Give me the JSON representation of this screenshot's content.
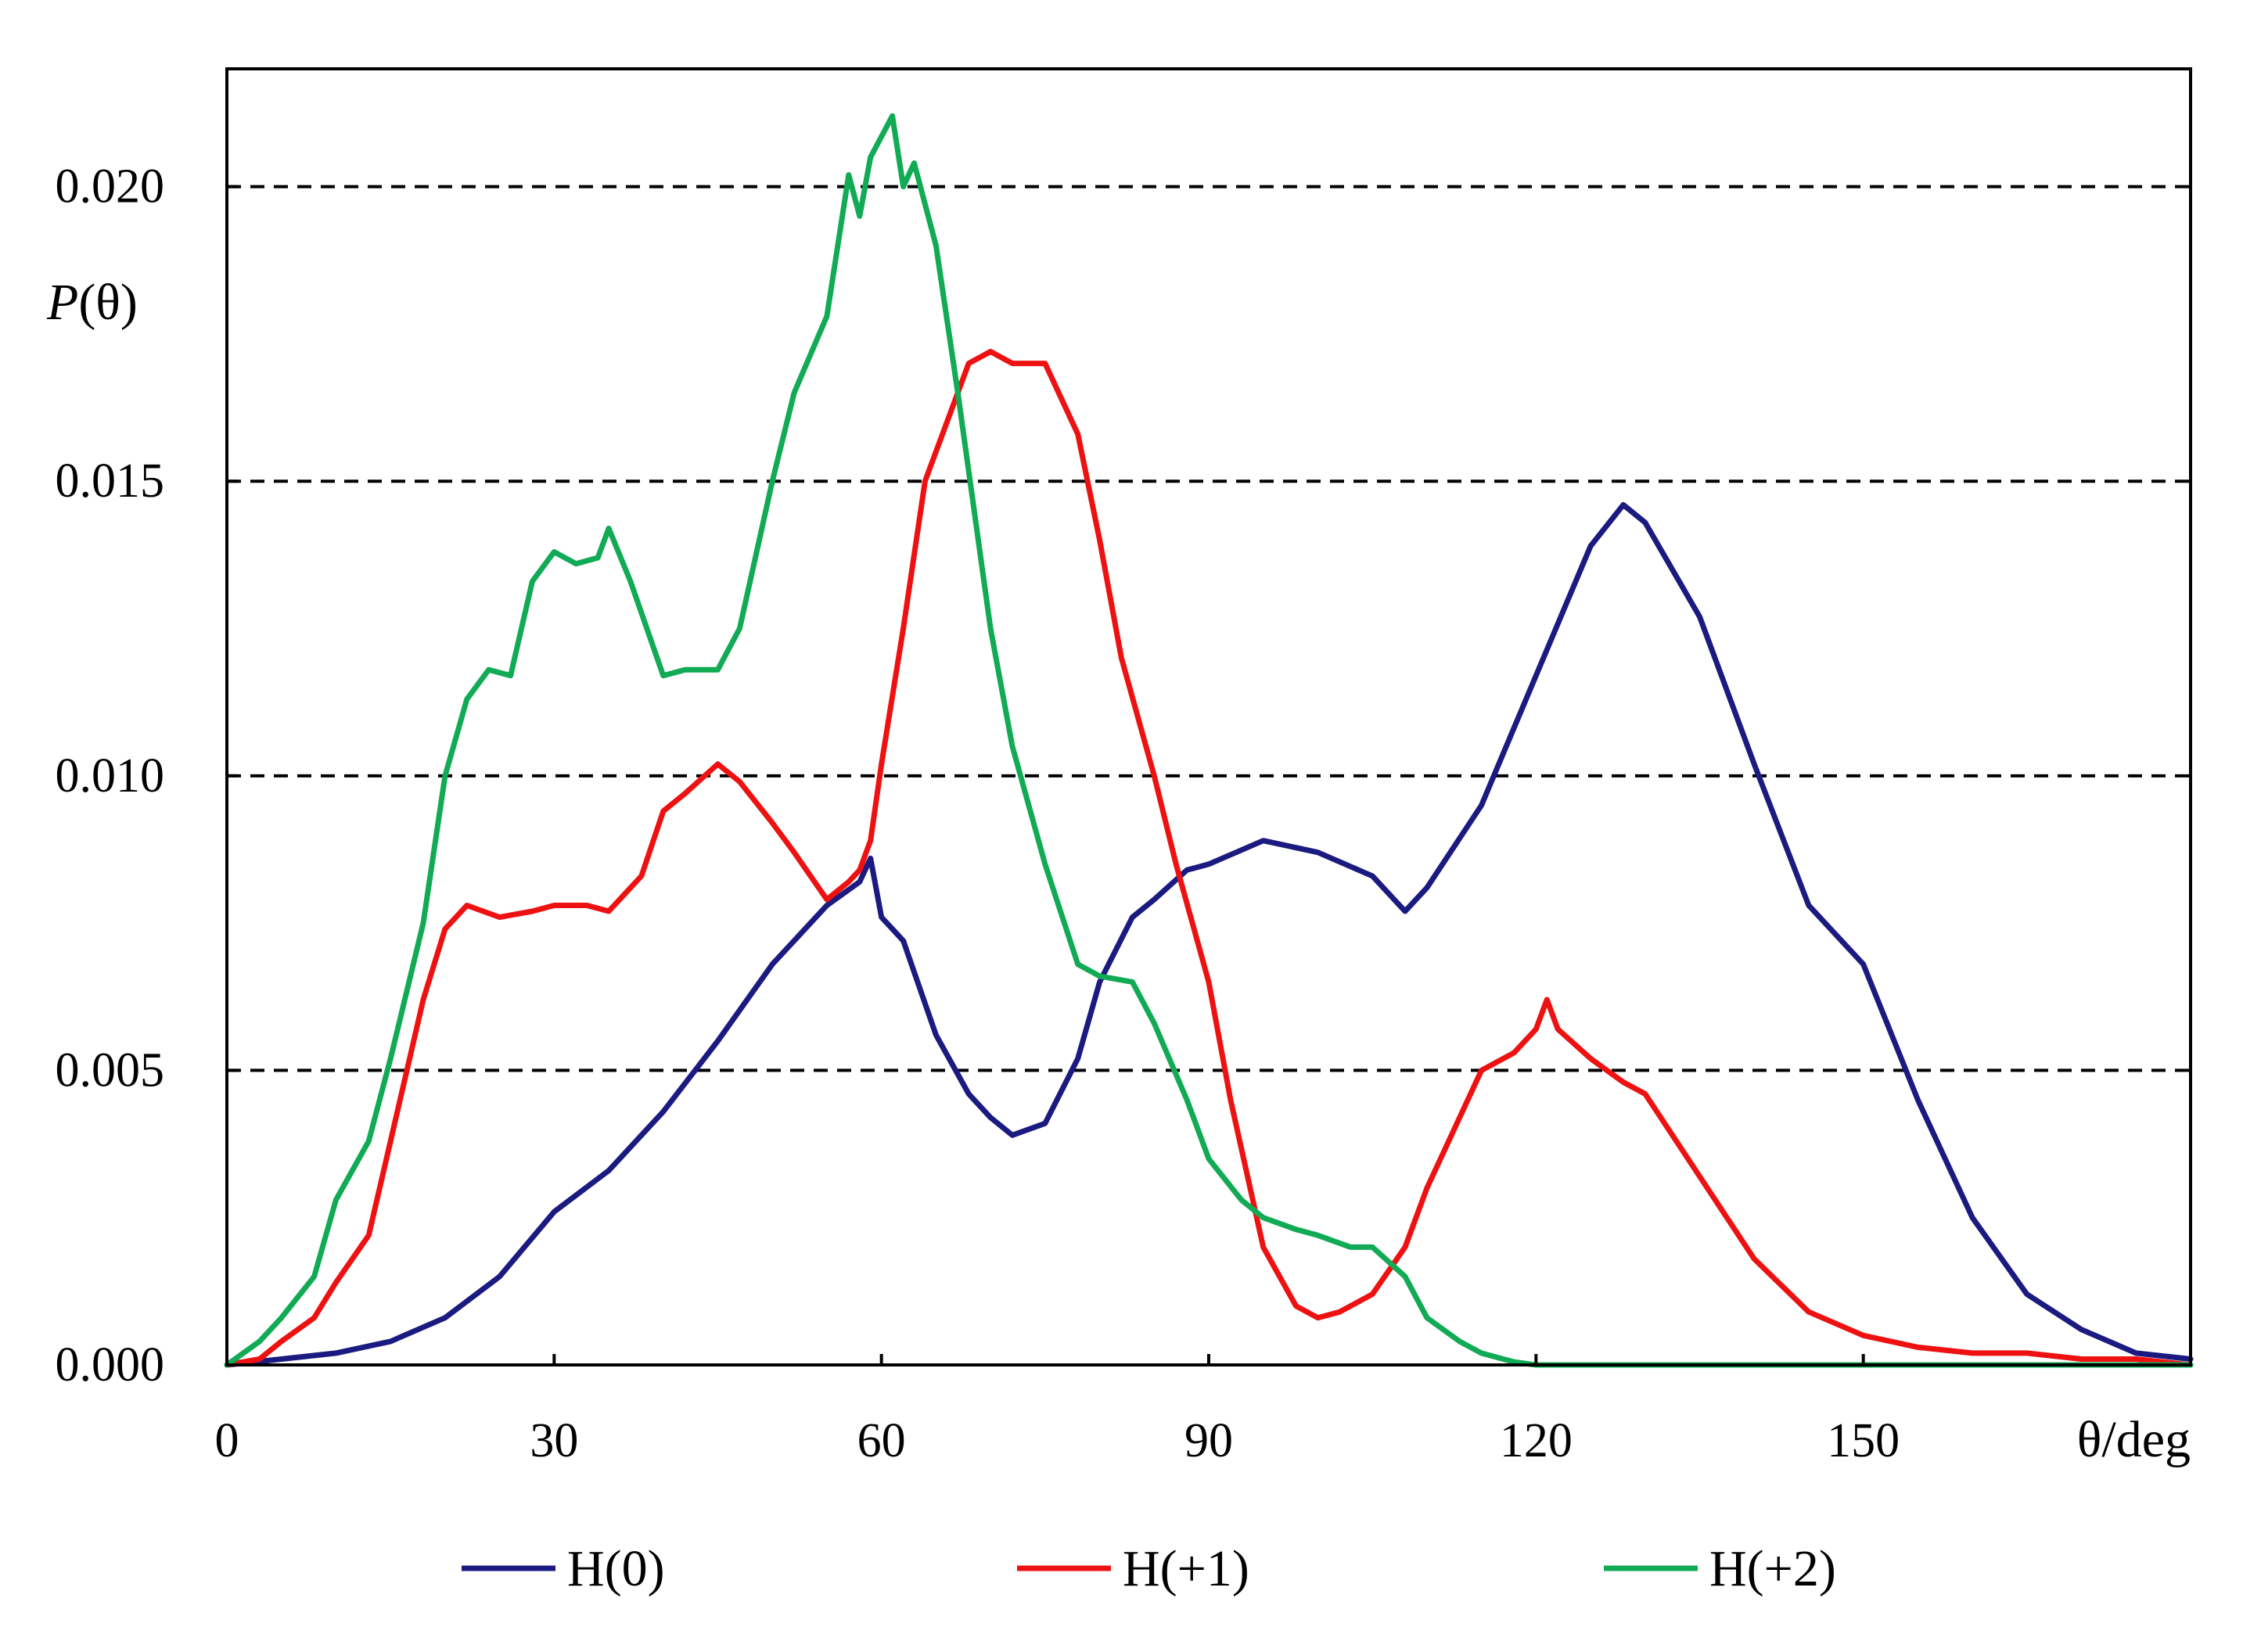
{
  "chart_data": {
    "type": "line",
    "xlabel": "θ/deg",
    "ylabel_italic": "P",
    "ylabel_rest": "(θ)",
    "xlim": [
      0,
      180
    ],
    "ylim": [
      0,
      0.022
    ],
    "xticks": [
      0,
      30,
      60,
      90,
      120,
      150
    ],
    "xtick_labels": [
      "0",
      "30",
      "60",
      "90",
      "120",
      "150"
    ],
    "yticks": [
      0.0,
      0.005,
      0.01,
      0.015,
      0.02
    ],
    "ytick_labels": [
      "0.000",
      "0.005",
      "0.010",
      "0.015",
      "0.020"
    ],
    "grid": "horizontal dashed at 0.005 steps",
    "legend_position": "bottom",
    "series": [
      {
        "name": "H(0)",
        "color": "#1a1a80",
        "x": [
          0,
          5,
          10,
          15,
          20,
          25,
          30,
          35,
          40,
          45,
          50,
          55,
          58,
          59,
          60,
          62,
          65,
          68,
          70,
          72,
          75,
          78,
          80,
          83,
          85,
          88,
          90,
          95,
          100,
          105,
          108,
          110,
          115,
          120,
          125,
          128,
          130,
          135,
          140,
          145,
          150,
          155,
          160,
          165,
          170,
          175,
          180
        ],
        "y": [
          0,
          0.0001,
          0.0002,
          0.0004,
          0.0008,
          0.0015,
          0.0026,
          0.0033,
          0.0043,
          0.0055,
          0.0068,
          0.0078,
          0.0082,
          0.0086,
          0.0076,
          0.0072,
          0.0056,
          0.0046,
          0.0042,
          0.0039,
          0.0041,
          0.0052,
          0.0065,
          0.0076,
          0.0079,
          0.0084,
          0.0085,
          0.0089,
          0.0087,
          0.0083,
          0.0077,
          0.0081,
          0.0095,
          0.0117,
          0.0139,
          0.0146,
          0.0143,
          0.0127,
          0.0102,
          0.0078,
          0.0068,
          0.0045,
          0.0025,
          0.0012,
          0.0006,
          0.0002,
          0.0001
        ]
      },
      {
        "name": "H(+1)",
        "color": "#ee1111",
        "x": [
          0,
          3,
          5,
          8,
          10,
          13,
          15,
          18,
          20,
          22,
          25,
          28,
          30,
          33,
          35,
          38,
          40,
          42,
          45,
          47,
          50,
          52,
          55,
          57,
          58,
          59,
          60,
          62,
          64,
          66,
          68,
          70,
          72,
          75,
          78,
          80,
          82,
          85,
          87,
          90,
          92,
          95,
          98,
          100,
          102,
          105,
          108,
          110,
          113,
          115,
          118,
          120,
          121,
          122,
          125,
          128,
          130,
          135,
          140,
          145,
          150,
          155,
          160,
          165,
          170,
          175,
          180
        ],
        "y": [
          0,
          0.0001,
          0.0004,
          0.0008,
          0.0014,
          0.0022,
          0.0038,
          0.0062,
          0.0074,
          0.0078,
          0.0076,
          0.0077,
          0.0078,
          0.0078,
          0.0077,
          0.0083,
          0.0094,
          0.0097,
          0.0102,
          0.0099,
          0.0092,
          0.0087,
          0.0079,
          0.0082,
          0.0084,
          0.0089,
          0.0102,
          0.0125,
          0.015,
          0.016,
          0.017,
          0.0172,
          0.017,
          0.017,
          0.0158,
          0.014,
          0.012,
          0.01,
          0.0085,
          0.0065,
          0.0045,
          0.002,
          0.001,
          0.0008,
          0.0009,
          0.0012,
          0.002,
          0.003,
          0.0042,
          0.005,
          0.0053,
          0.0057,
          0.0062,
          0.0057,
          0.0052,
          0.0048,
          0.0046,
          0.0032,
          0.0018,
          0.0009,
          0.0005,
          0.0003,
          0.0002,
          0.0002,
          0.0001,
          0.0001,
          0
        ]
      },
      {
        "name": "H(+2)",
        "color": "#11aa55",
        "x": [
          0,
          3,
          5,
          8,
          10,
          13,
          15,
          18,
          20,
          22,
          24,
          26,
          28,
          30,
          32,
          34,
          35,
          37,
          40,
          42,
          45,
          47,
          50,
          52,
          55,
          57,
          58,
          59,
          61,
          62,
          63,
          65,
          67,
          70,
          72,
          75,
          78,
          80,
          83,
          85,
          88,
          90,
          93,
          95,
          98,
          100,
          103,
          105,
          108,
          110,
          113,
          115,
          118,
          120,
          125,
          130,
          140,
          150,
          160,
          170,
          180
        ],
        "y": [
          0,
          0.0004,
          0.0008,
          0.0015,
          0.0028,
          0.0038,
          0.0052,
          0.0075,
          0.01,
          0.0113,
          0.0118,
          0.0117,
          0.0133,
          0.0138,
          0.0136,
          0.0137,
          0.0142,
          0.0133,
          0.0117,
          0.0118,
          0.0118,
          0.0125,
          0.015,
          0.0165,
          0.0178,
          0.0202,
          0.0195,
          0.0205,
          0.0212,
          0.02,
          0.0204,
          0.019,
          0.0165,
          0.0125,
          0.0105,
          0.0085,
          0.0068,
          0.0066,
          0.0065,
          0.0058,
          0.0045,
          0.0035,
          0.0028,
          0.0025,
          0.0023,
          0.0022,
          0.002,
          0.002,
          0.0015,
          0.0008,
          0.0004,
          0.0002,
          5e-05,
          0,
          0,
          0,
          0,
          0,
          0,
          0,
          0
        ]
      }
    ]
  }
}
